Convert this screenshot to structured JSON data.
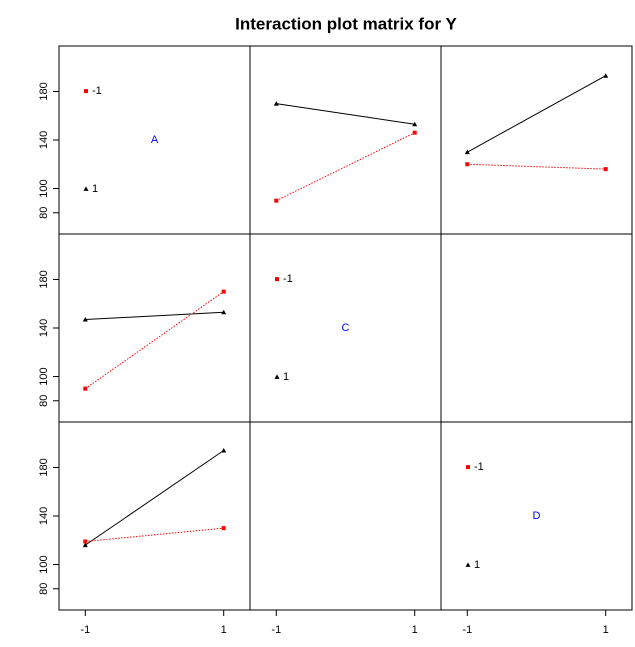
{
  "chart_data": {
    "type": "interaction-matrix",
    "title": "Interaction plot matrix for Y",
    "x": [
      -1,
      1
    ],
    "xlim": [
      -1.38,
      1.38
    ],
    "xticks": [
      -1,
      1
    ],
    "ylim": [
      62.5,
      217.5
    ],
    "yticks": [
      80,
      100,
      140,
      180
    ],
    "cells": [
      [
        {
          "label": "A",
          "legend": [
            "-1",
            "1"
          ]
        },
        {
          "series": [
            {
              "color": "#000000",
              "marker": "triangle",
              "dash": false,
              "values": [
                170,
                153
              ]
            },
            {
              "color": "#ff0000",
              "marker": "square",
              "dash": true,
              "values": [
                90,
                146
              ]
            }
          ]
        },
        {
          "series": [
            {
              "color": "#000000",
              "marker": "triangle",
              "dash": false,
              "values": [
                130,
                193
              ]
            },
            {
              "color": "#ff0000",
              "marker": "square",
              "dash": true,
              "values": [
                120,
                116
              ]
            }
          ]
        }
      ],
      [
        {
          "series": [
            {
              "color": "#000000",
              "marker": "triangle",
              "dash": false,
              "values": [
                147,
                153
              ]
            },
            {
              "color": "#ff0000",
              "marker": "square",
              "dash": true,
              "values": [
                90,
                170
              ]
            }
          ]
        },
        {
          "label": "C",
          "legend": [
            "-1",
            "1"
          ]
        },
        null
      ],
      [
        {
          "series": [
            {
              "color": "#000000",
              "marker": "triangle",
              "dash": false,
              "values": [
                116,
                194
              ]
            },
            {
              "color": "#ff0000",
              "marker": "square",
              "dash": true,
              "values": [
                119,
                130
              ]
            }
          ]
        },
        null,
        {
          "label": "D",
          "legend": [
            "-1",
            "1"
          ]
        }
      ]
    ]
  }
}
